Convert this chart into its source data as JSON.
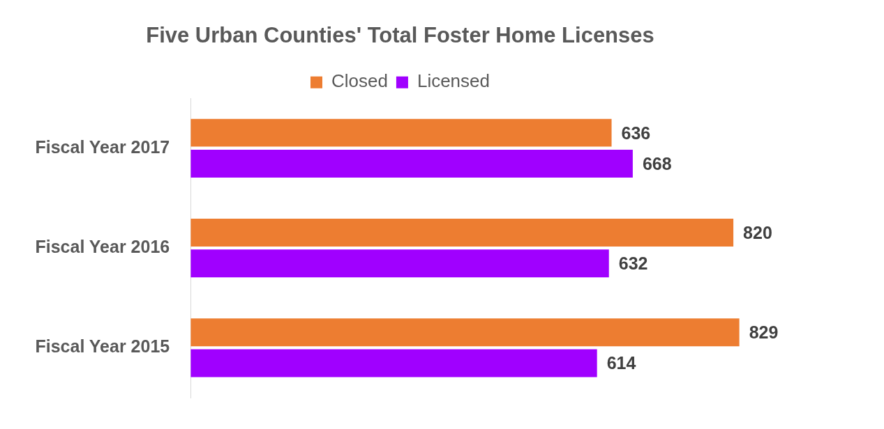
{
  "chart_data": {
    "type": "bar",
    "orientation": "horizontal",
    "title": "Five Urban Counties' Total Foster Home Licenses",
    "categories": [
      "Fiscal Year 2017",
      "Fiscal Year 2016",
      "Fiscal Year 2015"
    ],
    "series": [
      {
        "name": "Closed",
        "color": "#ed7d31",
        "values": [
          636,
          820,
          829
        ]
      },
      {
        "name": "Licensed",
        "color": "#a000ff",
        "values": [
          668,
          632,
          614
        ]
      }
    ],
    "data_labels": true,
    "legend": "top"
  }
}
